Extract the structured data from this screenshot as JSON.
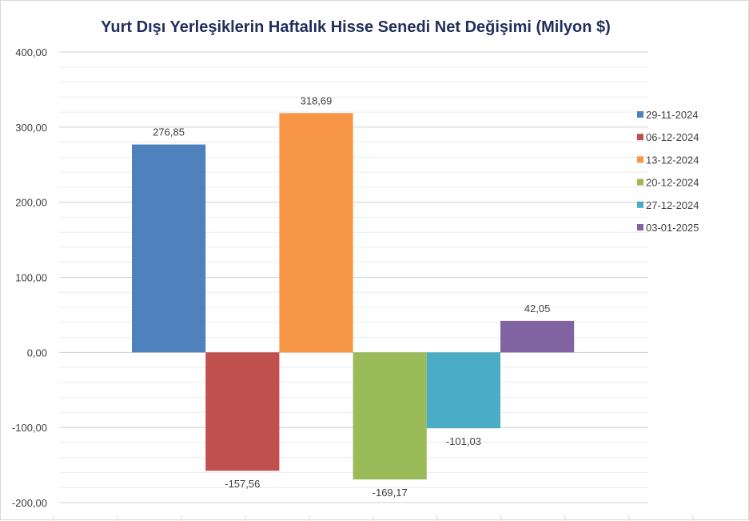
{
  "chart_data": {
    "type": "bar",
    "title": "Yurt Dışı Yerleşiklerin Haftalık Hisse Senedi Net Değişimi (Milyon $)",
    "xlabel": "",
    "ylabel": "",
    "ylim": [
      -200,
      400
    ],
    "yticks": [
      400,
      300,
      200,
      100,
      0,
      -100,
      -200
    ],
    "ytick_labels": [
      "400,00",
      "300,00",
      "200,00",
      "100,00",
      "0,00",
      "-100,00",
      "-200,00"
    ],
    "grid": true,
    "legend_position": "right",
    "series": [
      {
        "name": "29-11-2024",
        "value": 276.85,
        "label": "276,85",
        "color": "#4f81bd"
      },
      {
        "name": "06-12-2024",
        "value": -157.56,
        "label": "-157,56",
        "color": "#c0504d"
      },
      {
        "name": "13-12-2024",
        "value": 318.69,
        "label": "318,69",
        "color": "#f79646"
      },
      {
        "name": "20-12-2024",
        "value": -169.17,
        "label": "-169,17",
        "color": "#9bbb59"
      },
      {
        "name": "27-12-2024",
        "value": -101.03,
        "label": "-101,03",
        "color": "#4bacc6"
      },
      {
        "name": "03-01-2025",
        "value": 42.05,
        "label": "42,05",
        "color": "#8064a2"
      }
    ]
  }
}
